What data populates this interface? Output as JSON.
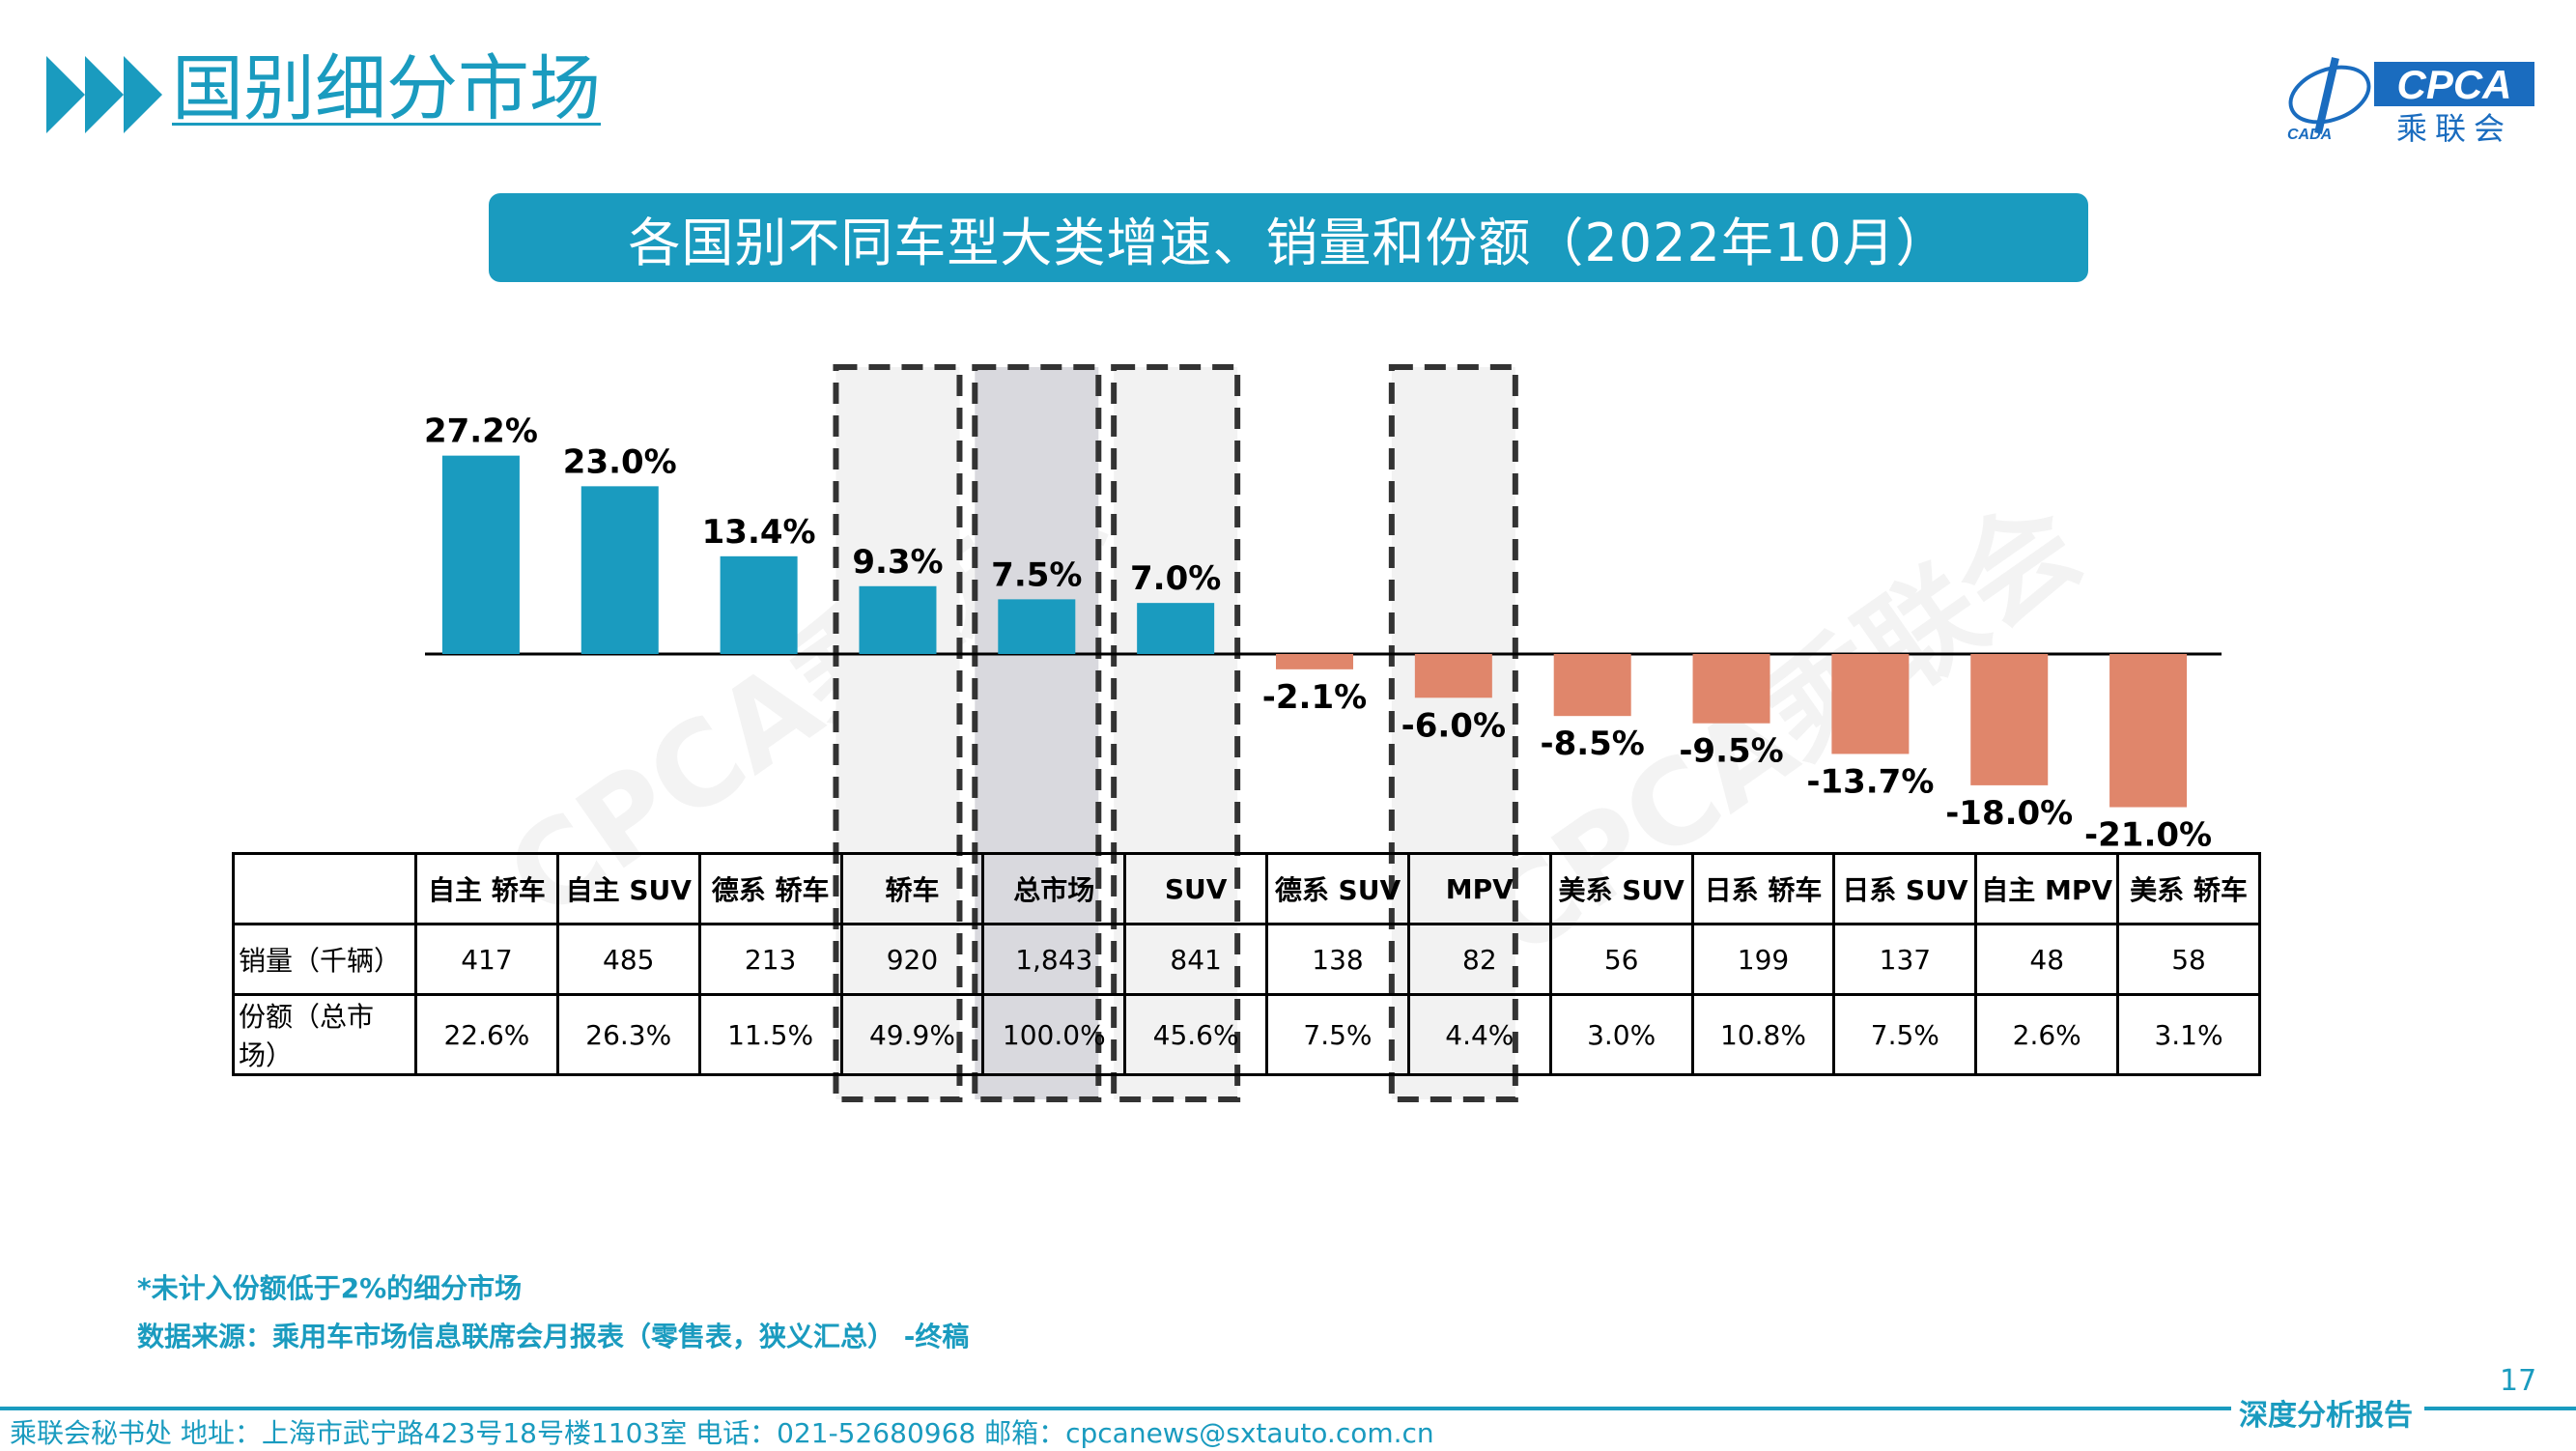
{
  "page": {
    "title": "国别细分市场",
    "banner": "各国别不同车型大类增速、销量和份额（2022年10月）",
    "logo_text": "CPCA",
    "logo_sub": "乘联会",
    "logo_small": "CADA",
    "watermark": "CPCA乘联会",
    "footnote1": "*未计入份额低于2%的细分市场",
    "footnote2": "数据来源：乘用车市场信息联席会月报表（零售表，狭义汇总） -终稿",
    "page_number": "17",
    "report_tag": "深度分析报告",
    "footer": "乘联会秘书处   地址：上海市武宁路423号18号楼1103室   电话：021-52680968   邮箱：cpcanews@sxtauto.com.cn",
    "colors": {
      "accent": "#1a9bbf",
      "positive": "#1a9bbf",
      "negative": "#e0866b",
      "highlight_gray": "#d9d9de",
      "highlight_light": "#f2f2f2"
    }
  },
  "table": {
    "row_labels": [
      "销量（千辆）",
      "份额（总市场）"
    ]
  },
  "chart_data": {
    "type": "bar",
    "categories": [
      "自主 轿车",
      "自主 SUV",
      "德系 轿车",
      "轿车",
      "总市场",
      "SUV",
      "德系 SUV",
      "MPV",
      "美系 SUV",
      "日系 轿车",
      "日系 SUV",
      "自主 MPV",
      "美系 轿车"
    ],
    "values": [
      27.2,
      23.0,
      13.4,
      9.3,
      7.5,
      7.0,
      -2.1,
      -6.0,
      -8.5,
      -9.5,
      -13.7,
      -18.0,
      -21.0
    ],
    "value_labels": [
      "27.2%",
      "23.0%",
      "13.4%",
      "9.3%",
      "7.5%",
      "7.0%",
      "-2.1%",
      "-6.0%",
      "-8.5%",
      "-9.5%",
      "-13.7%",
      "-18.0%",
      "-21.0%"
    ],
    "sales": [
      "417",
      "485",
      "213",
      "920",
      "1,843",
      "841",
      "138",
      "82",
      "56",
      "199",
      "137",
      "48",
      "58"
    ],
    "shares": [
      "22.6%",
      "26.3%",
      "11.5%",
      "49.9%",
      "100.0%",
      "45.6%",
      "7.5%",
      "4.4%",
      "3.0%",
      "10.8%",
      "7.5%",
      "2.6%",
      "3.1%"
    ],
    "highlighted": [
      "轿车",
      "总市场",
      "SUV",
      "MPV"
    ],
    "emphasized": "总市场",
    "ylim": [
      -21.0,
      27.2
    ],
    "grid": false,
    "legend": "none"
  }
}
